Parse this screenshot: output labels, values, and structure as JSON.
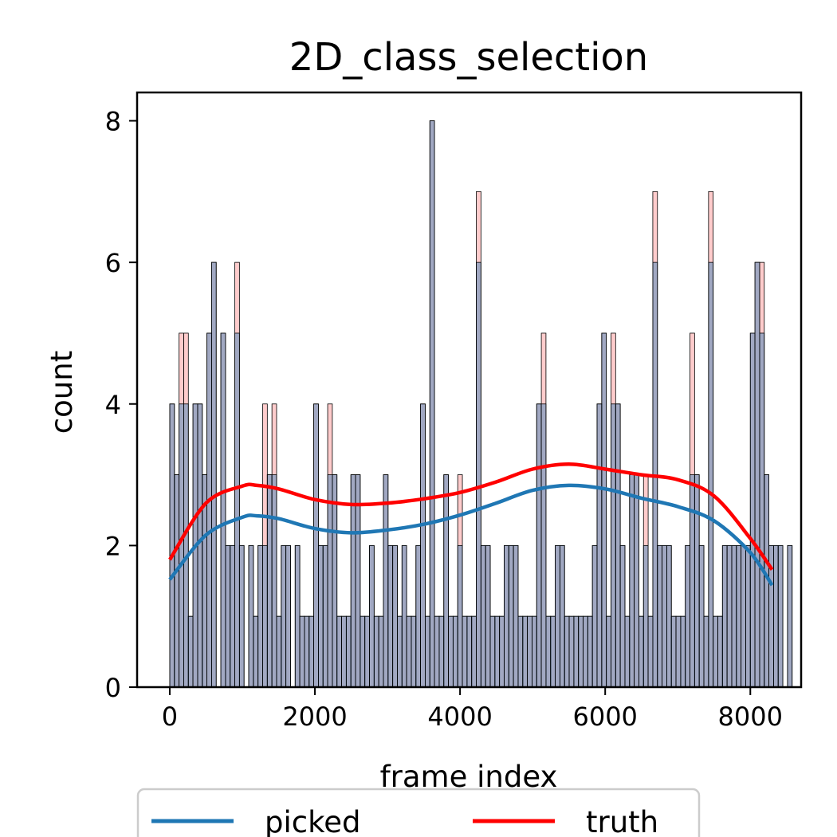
{
  "chart_data": {
    "type": "histogram",
    "title": "2D_class_selection",
    "xlabel": "frame index",
    "ylabel": "count",
    "xlim": [
      -450,
      8700
    ],
    "ylim": [
      0,
      8.4
    ],
    "grid": false,
    "legend_placement": "bottom-center",
    "bin_start": 0,
    "bin_width": 64,
    "xticks": [
      0,
      2000,
      4000,
      6000,
      8000
    ],
    "xtick_labels": [
      "0",
      "2000",
      "4000",
      "6000",
      "8000"
    ],
    "yticks": [
      0,
      2,
      4,
      6,
      8
    ],
    "ytick_labels": [
      "0",
      "2",
      "4",
      "6",
      "8"
    ],
    "picked_counts": [
      4,
      3,
      4,
      4,
      1,
      4,
      4,
      3,
      5,
      6,
      0,
      5,
      2,
      2,
      5,
      2,
      0,
      2,
      1,
      2,
      2,
      3,
      3,
      1,
      2,
      2,
      0,
      2,
      1,
      1,
      1,
      4,
      2,
      2,
      3,
      3,
      1,
      1,
      1,
      3,
      3,
      1,
      1,
      2,
      1,
      1,
      3,
      2,
      2,
      1,
      2,
      1,
      1,
      2,
      4,
      1,
      8,
      1,
      1,
      3,
      1,
      1,
      2,
      1,
      1,
      1,
      6,
      2,
      2,
      1,
      1,
      1,
      2,
      2,
      2,
      1,
      1,
      1,
      1,
      4,
      4,
      1,
      1,
      2,
      2,
      1,
      1,
      1,
      1,
      1,
      1,
      2,
      4,
      5,
      1,
      4,
      4,
      2,
      1,
      3,
      3,
      1,
      2,
      1,
      6,
      2,
      2,
      2,
      1,
      1,
      1,
      2,
      3,
      3,
      2,
      1,
      6,
      1,
      1,
      2,
      2,
      2,
      2,
      2,
      2,
      5,
      6,
      5,
      3,
      2,
      2,
      2,
      0,
      2
    ],
    "truth_counts": [
      4,
      3,
      5,
      5,
      1,
      4,
      4,
      3,
      5,
      6,
      0,
      5,
      2,
      2,
      6,
      2,
      0,
      2,
      1,
      2,
      4,
      3,
      4,
      1,
      2,
      2,
      0,
      2,
      1,
      1,
      1,
      4,
      2,
      2,
      4,
      3,
      1,
      1,
      1,
      3,
      3,
      1,
      1,
      2,
      1,
      1,
      3,
      2,
      2,
      1,
      2,
      1,
      1,
      2,
      4,
      1,
      8,
      1,
      1,
      3,
      1,
      1,
      3,
      1,
      1,
      1,
      7,
      2,
      2,
      1,
      1,
      1,
      2,
      2,
      2,
      1,
      1,
      1,
      1,
      4,
      5,
      1,
      1,
      2,
      2,
      1,
      1,
      1,
      1,
      1,
      1,
      2,
      4,
      5,
      1,
      5,
      4,
      2,
      1,
      3,
      3,
      1,
      3,
      1,
      7,
      2,
      2,
      2,
      1,
      1,
      1,
      2,
      5,
      3,
      2,
      1,
      7,
      1,
      1,
      2,
      2,
      2,
      2,
      2,
      2,
      5,
      6,
      6,
      3,
      2,
      2,
      2,
      0,
      2
    ],
    "series": [
      {
        "name": "picked",
        "color": "#1f77b4",
        "kde_x": [
          0,
          500,
          1000,
          1200,
          1500,
          2000,
          2500,
          3000,
          3500,
          4000,
          4500,
          5000,
          5500,
          6000,
          6500,
          7000,
          7500,
          8000,
          8300
        ],
        "kde_y": [
          1.52,
          2.15,
          2.4,
          2.42,
          2.38,
          2.24,
          2.18,
          2.22,
          2.3,
          2.43,
          2.6,
          2.78,
          2.85,
          2.8,
          2.67,
          2.55,
          2.35,
          1.9,
          1.44
        ]
      },
      {
        "name": "truth",
        "color": "#ff0000",
        "kde_x": [
          0,
          500,
          1000,
          1200,
          1500,
          2000,
          2500,
          3000,
          3500,
          4000,
          4500,
          5000,
          5500,
          6000,
          6500,
          7000,
          7500,
          8000,
          8300
        ],
        "kde_y": [
          1.8,
          2.6,
          2.84,
          2.85,
          2.8,
          2.65,
          2.58,
          2.6,
          2.66,
          2.75,
          2.9,
          3.08,
          3.15,
          3.08,
          3.0,
          2.93,
          2.7,
          2.1,
          1.66
        ]
      }
    ]
  }
}
